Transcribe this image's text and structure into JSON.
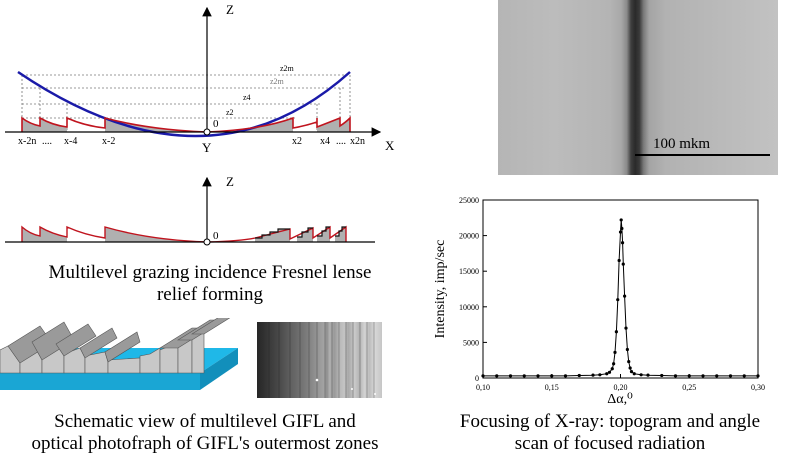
{
  "diagram1": {
    "axis_z": "Z",
    "axis_x": "X",
    "axis_y": "Y",
    "origin": "0",
    "x_left": [
      "x-2n",
      "....",
      "x-4",
      "x-2"
    ],
    "x_right": [
      "x2",
      "x4",
      "....",
      "x2n"
    ],
    "z_labels": [
      "z2m",
      "z2m",
      "z4",
      "z2"
    ]
  },
  "diagram2": {
    "axis_z": "Z",
    "origin": "0"
  },
  "caption_relief": [
    "Multilevel grazing incidence Fresnel lense",
    "relief forming"
  ],
  "caption_schematic": [
    "Schematic view of multilevel GIFL and",
    "optical photofraph of GIFL's outermost zones"
  ],
  "topogram": {
    "scale_label": "100 mkm"
  },
  "caption_focusing": [
    "Focusing of X-ray: topogram and angle",
    "scan of focused radiation"
  ],
  "colors": {
    "parabola": "#1a1aa8",
    "relief": "#c0141e",
    "fill": "#b0b0b0",
    "substrate": "#1fb8e8"
  },
  "chart_data": {
    "type": "line",
    "xlabel": "Δα,⁰",
    "ylabel": "Intensity, imp/sec",
    "xlim": [
      0.1,
      0.3
    ],
    "ylim": [
      0,
      25000
    ],
    "x_ticks": [
      "0,10",
      "0,15",
      "0,20",
      "0,25",
      "0,30"
    ],
    "y_ticks": [
      "0",
      "5000",
      "10000",
      "15000",
      "20000",
      "25000"
    ],
    "series": [
      {
        "x": [
          0.1,
          0.11,
          0.12,
          0.13,
          0.14,
          0.15,
          0.16,
          0.17,
          0.18,
          0.185,
          0.19,
          0.192,
          0.194,
          0.195,
          0.196,
          0.197,
          0.198,
          0.199,
          0.2,
          0.2005,
          0.201,
          0.2015,
          0.202,
          0.203,
          0.204,
          0.205,
          0.206,
          0.207,
          0.208,
          0.21,
          0.215,
          0.22,
          0.23,
          0.24,
          0.25,
          0.26,
          0.27,
          0.28,
          0.29,
          0.3
        ],
        "y": [
          300,
          300,
          300,
          300,
          300,
          300,
          300,
          350,
          400,
          450,
          600,
          800,
          1300,
          2000,
          3600,
          6500,
          11000,
          16500,
          20500,
          22200,
          21000,
          19000,
          16000,
          11500,
          7000,
          4000,
          2300,
          1400,
          900,
          600,
          450,
          400,
          350,
          300,
          300,
          300,
          300,
          300,
          300,
          300
        ]
      }
    ]
  }
}
